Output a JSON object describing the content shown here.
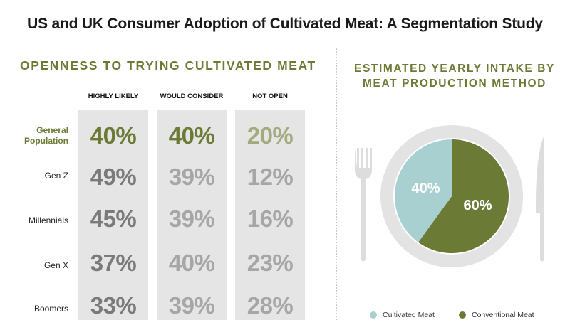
{
  "header": {
    "title": "US and UK Consumer Adoption of Cultivated Meat: A Segmentation Study"
  },
  "colors": {
    "accent_green": "#6b7a35",
    "mid_gray": "#7a7a7a",
    "light_gray": "#a6a6a6",
    "cultivated_teal": "#a8d0d0",
    "column_bg": "#e5e5e5",
    "utensil_gray": "#dddddd"
  },
  "chart_data": [
    {
      "type": "table",
      "title": "OPENNESS TO TRYING CULTIVATED MEAT",
      "columns": [
        "HIGHLY LIKELY",
        "WOULD CONSIDER",
        "NOT OPEN"
      ],
      "rows": [
        {
          "label": "General Population",
          "values": [
            "40%",
            "40%",
            "20%"
          ],
          "highlight": true
        },
        {
          "label": "Gen Z",
          "values": [
            "49%",
            "39%",
            "12%"
          ]
        },
        {
          "label": "Millennials",
          "values": [
            "45%",
            "39%",
            "16%"
          ]
        },
        {
          "label": "Gen X",
          "values": [
            "37%",
            "40%",
            "23%"
          ]
        },
        {
          "label": "Boomers",
          "values": [
            "33%",
            "39%",
            "28%"
          ]
        }
      ]
    },
    {
      "type": "pie",
      "title": "ESTIMATED YEARLY INTAKE BY MEAT PRODUCTION METHOD",
      "slices": [
        {
          "name": "Cultivated Meat",
          "value": 40,
          "label": "40%",
          "color": "#a8d0d0"
        },
        {
          "name": "Conventional Meat",
          "value": 60,
          "label": "60%",
          "color": "#6b7a35"
        }
      ],
      "legend_position": "bottom"
    }
  ]
}
